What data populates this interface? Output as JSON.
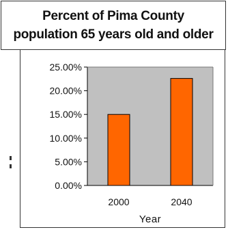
{
  "chart_data": {
    "type": "bar",
    "title": [
      "Percent of Pima County",
      "population 65 years old and older"
    ],
    "categories": [
      "2000",
      "2040"
    ],
    "values": [
      15.0,
      22.6
    ],
    "xlabel": "Year",
    "ylabel": "",
    "ylim": [
      0,
      25
    ],
    "y_ticks": [
      "0.00%",
      "5.00%",
      "10.00%",
      "15.00%",
      "20.00%",
      "25.00%"
    ],
    "y_tick_values": [
      0,
      5,
      10,
      15,
      20,
      25
    ],
    "grid": false,
    "colors": {
      "bar": "#ff6600",
      "bar_border": "#000000",
      "plot_bg": "#c0c0c0"
    }
  }
}
